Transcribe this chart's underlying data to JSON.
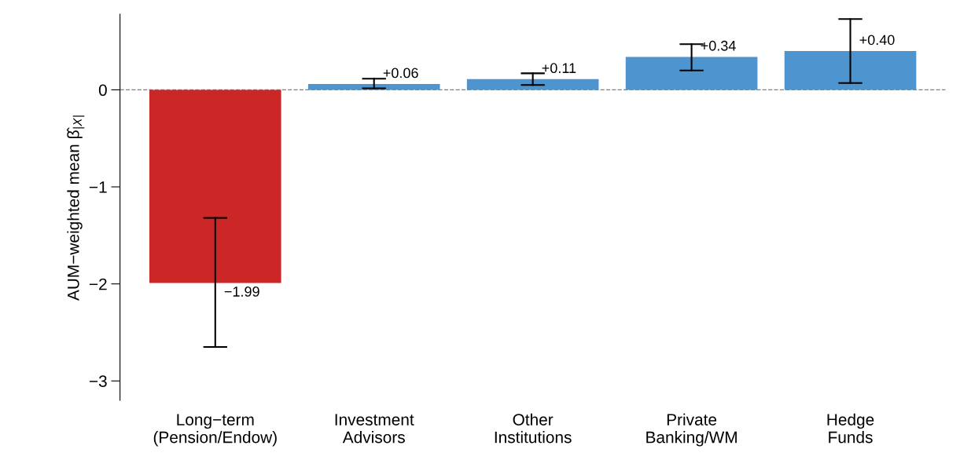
{
  "chart_data": {
    "type": "bar",
    "categories": [
      "Long−term\n(Pension/Endow)",
      "Investment\nAdvisors",
      "Other\nInstitutions",
      "Private\nBanking/WM",
      "Hedge\nFunds"
    ],
    "values": [
      -1.99,
      0.06,
      0.11,
      0.34,
      0.4
    ],
    "colors": [
      "#cb2727",
      "#4e94cf",
      "#4e94cf",
      "#4e94cf",
      "#4e94cf"
    ],
    "errors": [
      [
        -2.65,
        -1.32
      ],
      [
        0.015,
        0.115
      ],
      [
        0.05,
        0.17
      ],
      [
        0.2,
        0.47
      ],
      [
        0.07,
        0.73
      ]
    ],
    "value_labels": [
      "−1.99",
      "+0.06",
      "+0.11",
      "+0.34",
      "+0.40"
    ],
    "ylabel": "AUM−weighted mean β̂$_{|X|}$",
    "ylim": [
      -3.2,
      0.78
    ],
    "yticks": [
      {
        "value": -3,
        "label": "−3"
      },
      {
        "value": -2,
        "label": "−2"
      },
      {
        "value": -1,
        "label": "−1"
      },
      0
    ],
    "ref_lines": [
      {
        "axis": "y",
        "value": 0,
        "color": "#808080",
        "line_style": "dashed"
      }
    ],
    "grid": false
  }
}
